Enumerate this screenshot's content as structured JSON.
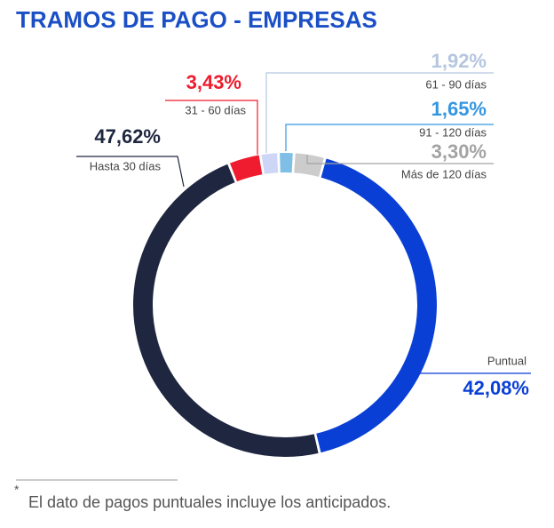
{
  "chart_data": {
    "type": "pie",
    "donut": true,
    "title": "TRAMOS DE PAGO - EMPRESAS",
    "categories": [
      "91 - 120 días",
      "Más de 120 días",
      "Puntual",
      "Hasta 30 días",
      "31 - 60 días",
      "61 - 90 días"
    ],
    "values": [
      1.65,
      3.3,
      42.08,
      47.62,
      3.43,
      1.92
    ],
    "value_labels": [
      "1,65%",
      "3,30%",
      "42,08%",
      "47,62%",
      "3,43%",
      "1,92%"
    ],
    "colors": [
      "#7fbfe6",
      "#cccccc",
      "#0a3fd6",
      "#1f2740",
      "#ee1c2e",
      "#cdd6f6"
    ],
    "label_colors": [
      "#3596e0",
      "#a3a3a3",
      "#0a3fd6",
      "#1f2740",
      "#ee1c2e",
      "#b5c6df"
    ],
    "footnote_marker": "*",
    "footnote": "El dato de pagos puntuales incluye los anticipados."
  }
}
